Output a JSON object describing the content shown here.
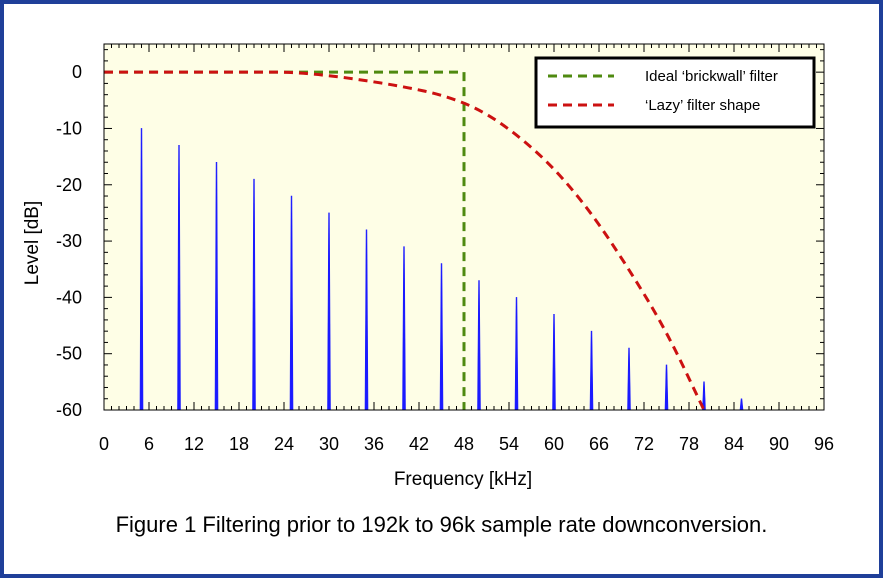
{
  "caption": "Figure 1 Filtering prior to 192k to 96k sample rate downconversion.",
  "chart_data": {
    "type": "line",
    "title": "",
    "xlabel": "Frequency [kHz]",
    "ylabel": "Level [dB]",
    "xlim": [
      0,
      96
    ],
    "ylim": [
      -60,
      5
    ],
    "x_ticks": [
      0,
      6,
      12,
      18,
      24,
      30,
      36,
      42,
      48,
      54,
      60,
      66,
      72,
      78,
      84,
      90,
      96
    ],
    "y_ticks": [
      0,
      -10,
      -20,
      -30,
      -40,
      -50,
      -60
    ],
    "grid": false,
    "plot_background": "#fefee6",
    "legend_position": "top-right",
    "legend": [
      {
        "label": "Ideal ‘brickwall’ filter",
        "color": "#4f8a10"
      },
      {
        "label": "‘Lazy’ filter shape",
        "color": "#cc1111"
      }
    ],
    "brickwall": {
      "color": "#4f8a10",
      "x": [
        0,
        48,
        48
      ],
      "y": [
        0,
        0,
        -60
      ]
    },
    "lazy_filter": {
      "color": "#cc1111",
      "x": [
        0,
        5,
        10,
        15,
        20,
        25,
        30,
        35,
        40,
        45,
        50,
        55,
        60,
        65,
        70,
        75,
        80
      ],
      "y": [
        0,
        0,
        0,
        0,
        0,
        0,
        -0.6,
        -1.5,
        -2.6,
        -4,
        -6.5,
        -11,
        -17,
        -25,
        -35,
        -46,
        -60
      ]
    },
    "spectral_lines": {
      "color": "#1a1aff",
      "x": [
        5,
        10,
        15,
        20,
        25,
        30,
        35,
        40,
        45,
        50,
        55,
        60,
        65,
        70,
        75,
        80,
        85
      ],
      "y": [
        -10,
        -13,
        -16,
        -19,
        -22,
        -25,
        -28,
        -31,
        -34,
        -37,
        -40,
        -43,
        -46,
        -49,
        -52,
        -55,
        -58
      ]
    }
  }
}
